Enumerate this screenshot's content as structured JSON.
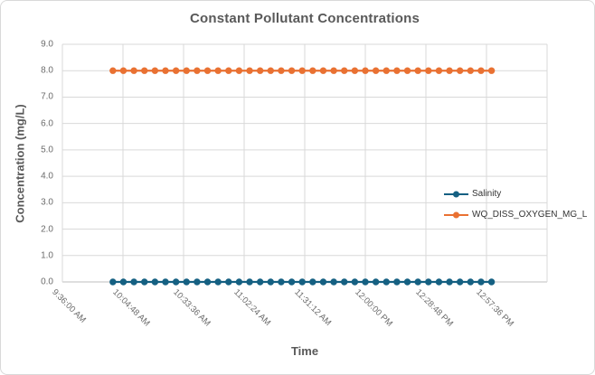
{
  "window": {
    "background": "#ffffff",
    "border_color": "#d9d9d9"
  },
  "colors": {
    "gridline": "#d9d9d9",
    "axis_line": "#bfbfbf",
    "title_text": "#595959",
    "tick_text": "#6b6b6b",
    "legend_text": "#333333"
  },
  "chart_data": {
    "type": "line",
    "title": "Constant Pollutant Concentrations",
    "xlabel": "Time",
    "ylabel": "Concentration (mg/L)",
    "ylim": [
      0.0,
      9.0
    ],
    "y_major_unit": 1.0,
    "y_tick_labels": [
      "9.0",
      "8.0",
      "7.0",
      "6.0",
      "5.0",
      "4.0",
      "3.0",
      "2.0",
      "1.0",
      "0.0"
    ],
    "x_tick_labels": [
      "9:36:00 AM",
      "10:04:48 AM",
      "10:33:36 AM",
      "11:02:24 AM",
      "11:31:12 AM",
      "12:00:00 PM",
      "12:28:48 PM",
      "12:57:36 PM"
    ],
    "x_tick_rotation_deg": 45,
    "x_range_days": [
      0.4,
      0.56
    ],
    "x_major_unit_days": 0.02,
    "x_gridlines_total": 9,
    "grid": true,
    "legend_position": "inside-right",
    "data_points": {
      "first_time": "10:00:00 AM",
      "last_time": "1:00:00 PM",
      "interval_minutes": 5,
      "count": 37
    },
    "series": [
      {
        "name": "Salinity",
        "color": "#156082",
        "marker": "circle",
        "constant_value": 0.0
      },
      {
        "name": "WQ_DISS_OXYGEN_MG_L",
        "color": "#E97132",
        "marker": "circle",
        "constant_value": 8.0
      }
    ]
  }
}
